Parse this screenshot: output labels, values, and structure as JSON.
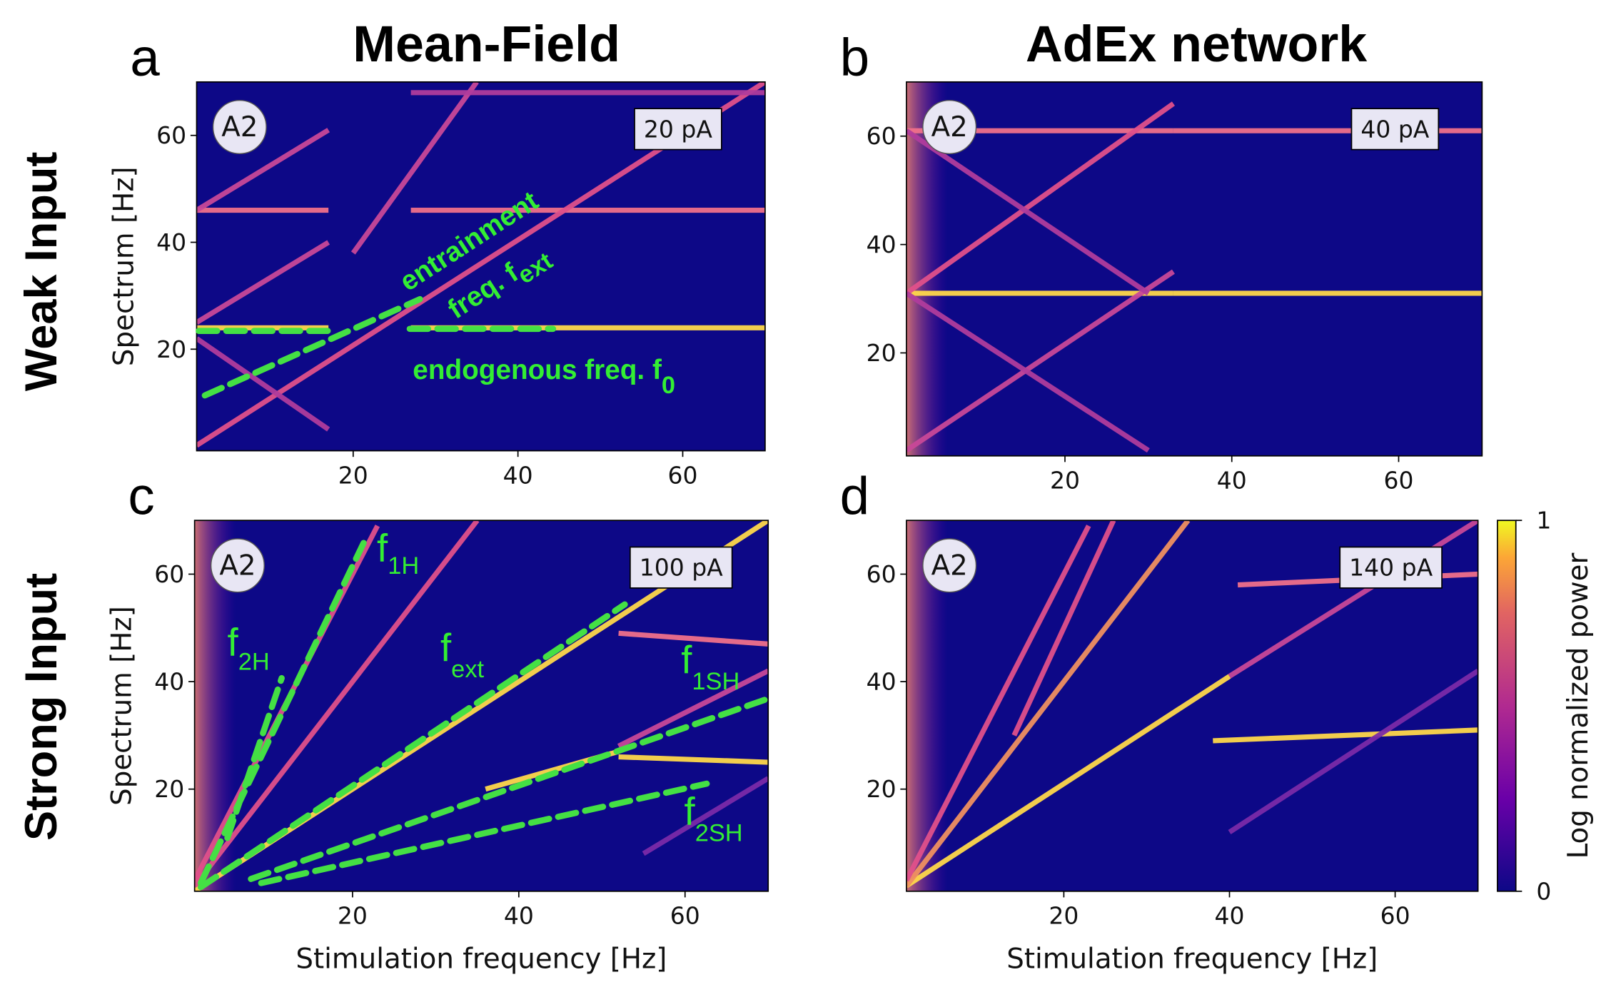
{
  "column_titles": [
    "Mean-Field",
    "AdEx network"
  ],
  "row_labels": [
    "Weak Input",
    "Strong Input"
  ],
  "chart_data": [
    {
      "type": "heatmap",
      "letter": "a",
      "badge": "A2",
      "input_label": "20 pA",
      "ylabel": "Spectrum [Hz]",
      "xlim": [
        1,
        70
      ],
      "ylim": [
        1,
        70
      ],
      "xticks": [
        20,
        40,
        60
      ],
      "yticks": [
        20,
        40,
        60
      ],
      "annotations": [
        {
          "text": "entrainment"
        },
        {
          "text": "freq. f",
          "sub": "ext"
        },
        {
          "text": "endogenous freq. f",
          "sub": "0"
        }
      ],
      "ridges": [
        {
          "x": [
            1,
            17
          ],
          "y": [
            24,
            24
          ],
          "color": "#ffd84a"
        },
        {
          "x": [
            27,
            70
          ],
          "y": [
            24,
            24
          ],
          "color": "#ffd84a"
        },
        {
          "x": [
            1,
            17
          ],
          "y": [
            46,
            46
          ],
          "color": "#f0708a"
        },
        {
          "x": [
            27,
            70
          ],
          "y": [
            46,
            46
          ],
          "color": "#f0708a"
        },
        {
          "x": [
            1,
            70
          ],
          "y": [
            2,
            70
          ],
          "color": "#e0508a"
        },
        {
          "x": [
            1,
            17
          ],
          "y": [
            25,
            40
          ],
          "color": "#c84898"
        },
        {
          "x": [
            1,
            17
          ],
          "y": [
            46,
            61
          ],
          "color": "#c84898"
        },
        {
          "x": [
            20,
            35
          ],
          "y": [
            38,
            70
          ],
          "color": "#c84898"
        },
        {
          "x": [
            1,
            17
          ],
          "y": [
            22,
            5
          ],
          "color": "#b03c9c"
        },
        {
          "x": [
            27,
            70
          ],
          "y": [
            68,
            68
          ],
          "color": "#b03c9c"
        }
      ]
    },
    {
      "type": "heatmap",
      "letter": "b",
      "badge": "A2",
      "input_label": "40 pA",
      "xlim": [
        1,
        70
      ],
      "ylim": [
        1,
        70
      ],
      "xticks": [
        20,
        40,
        60
      ],
      "yticks": [
        20,
        40,
        60
      ],
      "ridges": [
        {
          "x": [
            1,
            33
          ],
          "y": [
            31,
            31
          ],
          "color": "#ffd84a"
        },
        {
          "x": [
            33,
            70
          ],
          "y": [
            31,
            31
          ],
          "color": "#ffd84a"
        },
        {
          "x": [
            1,
            33
          ],
          "y": [
            61,
            61
          ],
          "color": "#f0708a"
        },
        {
          "x": [
            33,
            70
          ],
          "y": [
            61,
            61
          ],
          "color": "#f0708a"
        },
        {
          "x": [
            1,
            33
          ],
          "y": [
            2,
            35
          ],
          "color": "#c84898"
        },
        {
          "x": [
            1,
            33
          ],
          "y": [
            31,
            66
          ],
          "color": "#e0508a"
        },
        {
          "x": [
            1,
            30
          ],
          "y": [
            31,
            2
          ],
          "color": "#b03c9c"
        },
        {
          "x": [
            1,
            30
          ],
          "y": [
            61,
            31
          ],
          "color": "#b03c9c"
        }
      ]
    },
    {
      "type": "heatmap",
      "letter": "c",
      "badge": "A2",
      "input_label": "100 pA",
      "ylabel": "Spectrum [Hz]",
      "xlabel": "Stimulation frequency [Hz]",
      "xlim": [
        1,
        70
      ],
      "ylim": [
        1,
        70
      ],
      "xticks": [
        20,
        40,
        60
      ],
      "yticks": [
        20,
        40,
        60
      ],
      "annotations": [
        {
          "text": "f",
          "sub": "1H"
        },
        {
          "text": "f",
          "sub": "2H"
        },
        {
          "text": "f",
          "sub": "ext"
        },
        {
          "text": "f",
          "sub": "1SH"
        },
        {
          "text": "f",
          "sub": "2SH"
        }
      ],
      "ridges": [
        {
          "x": [
            1,
            70
          ],
          "y": [
            1,
            70
          ],
          "color": "#ffd84a"
        },
        {
          "x": [
            1,
            35
          ],
          "y": [
            2,
            70
          ],
          "color": "#e0508a"
        },
        {
          "x": [
            1,
            23
          ],
          "y": [
            3,
            69
          ],
          "color": "#e0508a"
        },
        {
          "x": [
            36,
            52
          ],
          "y": [
            20,
            27
          ],
          "color": "#ffd84a"
        },
        {
          "x": [
            52,
            70
          ],
          "y": [
            26,
            25
          ],
          "color": "#ffd84a"
        },
        {
          "x": [
            52,
            70
          ],
          "y": [
            49,
            47
          ],
          "color": "#f0708a"
        },
        {
          "x": [
            52,
            70
          ],
          "y": [
            28,
            42
          ],
          "color": "#c84898"
        },
        {
          "x": [
            55,
            70
          ],
          "y": [
            8,
            22
          ],
          "color": "#7a2aa8"
        }
      ]
    },
    {
      "type": "heatmap",
      "letter": "d",
      "badge": "A2",
      "input_label": "140 pA",
      "xlabel": "Stimulation frequency [Hz]",
      "xlim": [
        1,
        70
      ],
      "ylim": [
        1,
        70
      ],
      "xticks": [
        20,
        40,
        60
      ],
      "yticks": [
        20,
        40,
        60
      ],
      "ridges": [
        {
          "x": [
            1,
            40
          ],
          "y": [
            2,
            41
          ],
          "color": "#ffd84a"
        },
        {
          "x": [
            40,
            70
          ],
          "y": [
            41,
            70
          ],
          "color": "#c84898"
        },
        {
          "x": [
            38,
            70
          ],
          "y": [
            29,
            31
          ],
          "color": "#ffd84a"
        },
        {
          "x": [
            41,
            70
          ],
          "y": [
            58,
            60
          ],
          "color": "#f0708a"
        },
        {
          "x": [
            1,
            35
          ],
          "y": [
            2,
            70
          ],
          "color": "#f09060"
        },
        {
          "x": [
            1,
            23
          ],
          "y": [
            3,
            69
          ],
          "color": "#e0508a"
        },
        {
          "x": [
            14,
            26
          ],
          "y": [
            30,
            70
          ],
          "color": "#e0508a"
        },
        {
          "x": [
            40,
            70
          ],
          "y": [
            12,
            42
          ],
          "color": "#7a2aa8"
        }
      ]
    }
  ],
  "colorbar": {
    "label": "Log normalized power",
    "lim": [
      0,
      1
    ],
    "ticks": [
      0,
      1
    ]
  }
}
